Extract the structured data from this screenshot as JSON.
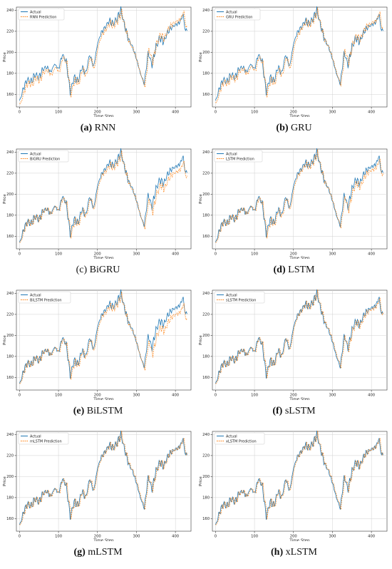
{
  "figure": {
    "panels": [
      {
        "letter": "(a)",
        "model": "RNN",
        "letter_bold": true,
        "model_bold": false,
        "legend": "RNN Prediction",
        "offset": [
          -3,
          -2,
          -2,
          3
        ]
      },
      {
        "letter": "(b)",
        "model": "GRU",
        "letter_bold": true,
        "model_bold": false,
        "legend": "GRU Prediction",
        "offset": [
          -2,
          -2,
          -1,
          2
        ]
      },
      {
        "letter": "(c)",
        "model": "BiGRU",
        "letter_bold": false,
        "model_bold": false,
        "legend": "BiGRU Prediction",
        "offset": [
          0,
          -1,
          -2,
          -5
        ]
      },
      {
        "letter": "(d)",
        "model": "LSTM",
        "letter_bold": true,
        "model_bold": false,
        "legend": "LSTM Prediction",
        "offset": [
          0,
          -1,
          -1,
          -3
        ]
      },
      {
        "letter": "(e)",
        "model": "BiLSTM",
        "letter_bold": true,
        "model_bold": false,
        "legend": "BiLSTM Prediction",
        "offset": [
          0,
          -1,
          -2,
          -6
        ]
      },
      {
        "letter": "(f)",
        "model": "sLSTM",
        "letter_bold": true,
        "model_bold": false,
        "legend": "sLSTM Prediction",
        "offset": [
          0,
          0,
          0,
          -1
        ]
      },
      {
        "letter": "(g)",
        "model": "mLSTM",
        "letter_bold": true,
        "model_bold": false,
        "legend": "mLSTM Prediction",
        "offset": [
          0,
          0,
          0,
          0
        ]
      },
      {
        "letter": "(h)",
        "model": "xLSTM",
        "letter_bold": true,
        "model_bold": false,
        "legend": "xLSTM Prediction",
        "offset": [
          0,
          0,
          0,
          0
        ]
      }
    ]
  },
  "chart_data": {
    "type": "line",
    "xlabel": "Time Step",
    "ylabel": "Price",
    "xlim": [
      -8,
      440
    ],
    "ylim": [
      148,
      243
    ],
    "xticks": [
      0,
      100,
      200,
      300,
      400
    ],
    "yticks": [
      160,
      180,
      200,
      220,
      240
    ],
    "grid": true,
    "legend_position": "top-left",
    "colors": {
      "actual": "#1f77b4",
      "prediction": "#ff7f0e"
    },
    "actual_series_name": "Actual",
    "actual": {
      "x": [
        0,
        10,
        20,
        30,
        40,
        50,
        60,
        70,
        80,
        90,
        100,
        110,
        120,
        130,
        140,
        150,
        160,
        170,
        180,
        190,
        200,
        210,
        220,
        230,
        240,
        250,
        260,
        270,
        280,
        290,
        300,
        310,
        320,
        330,
        340,
        350,
        360,
        370,
        380,
        390,
        400,
        410,
        420,
        425,
        430
      ],
      "y": [
        153,
        166,
        174,
        172,
        179,
        176,
        184,
        186,
        181,
        189,
        184,
        198,
        191,
        162,
        176,
        172,
        186,
        180,
        198,
        186,
        208,
        219,
        224,
        230,
        227,
        232,
        240,
        225,
        212,
        205,
        194,
        180,
        170,
        200,
        188,
        205,
        214,
        210,
        219,
        224,
        226,
        228,
        236,
        220,
        222
      ]
    }
  }
}
